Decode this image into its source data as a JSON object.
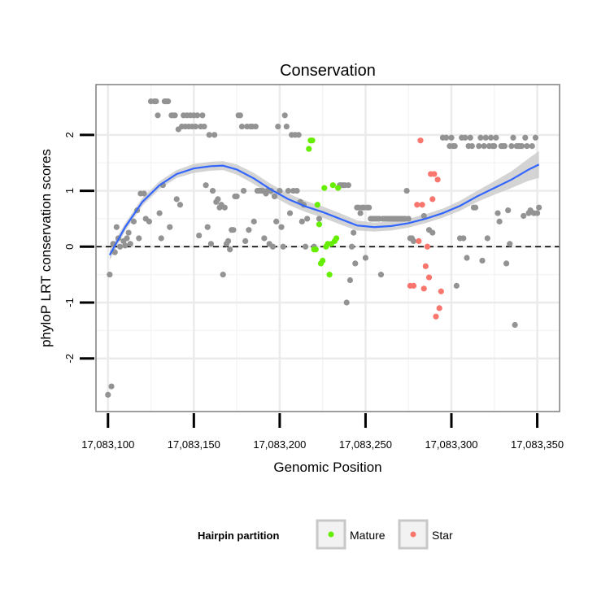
{
  "chart_data": {
    "type": "scatter",
    "title": "Conservation",
    "xlabel": "Genomic Position",
    "ylabel": "phyloP LRT conservation scores",
    "xlim": [
      17083093,
      17083363
    ],
    "ylim": [
      -2.95,
      2.9
    ],
    "x_ticks": [
      {
        "value": 17083100,
        "label": "17,083,100"
      },
      {
        "value": 17083150,
        "label": "17,083,150"
      },
      {
        "value": 17083200,
        "label": "17,083,200"
      },
      {
        "value": 17083250,
        "label": "17,083,250"
      },
      {
        "value": 17083300,
        "label": "17,083,300"
      },
      {
        "value": 17083350,
        "label": "17,083,350"
      }
    ],
    "y_ticks": [
      {
        "value": -2,
        "label": "-2"
      },
      {
        "value": -1,
        "label": "-1"
      },
      {
        "value": 0,
        "label": "0"
      },
      {
        "value": 1,
        "label": "1"
      },
      {
        "value": 2,
        "label": "2"
      }
    ],
    "reference_line": {
      "y": 0,
      "style": "dashed",
      "color": "#000000"
    },
    "legend": {
      "title": "Hairpin partition",
      "position": "bottom",
      "entries": [
        {
          "label": "Mature",
          "color": "#66ee00"
        },
        {
          "label": "Star",
          "color": "#f8766d"
        }
      ]
    },
    "colors": {
      "other": "#939393",
      "mature": "#66ee00",
      "star": "#f8766d",
      "smooth": "#3366ff",
      "band": "#cccccc"
    },
    "smooth": [
      [
        17083101,
        -0.15
      ],
      [
        17083110,
        0.35
      ],
      [
        17083120,
        0.8
      ],
      [
        17083130,
        1.1
      ],
      [
        17083140,
        1.3
      ],
      [
        17083150,
        1.4
      ],
      [
        17083160,
        1.44
      ],
      [
        17083167,
        1.45
      ],
      [
        17083175,
        1.38
      ],
      [
        17083185,
        1.22
      ],
      [
        17083195,
        1.02
      ],
      [
        17083205,
        0.85
      ],
      [
        17083215,
        0.72
      ],
      [
        17083225,
        0.62
      ],
      [
        17083235,
        0.5
      ],
      [
        17083245,
        0.38
      ],
      [
        17083255,
        0.35
      ],
      [
        17083265,
        0.37
      ],
      [
        17083275,
        0.42
      ],
      [
        17083285,
        0.5
      ],
      [
        17083295,
        0.6
      ],
      [
        17083305,
        0.73
      ],
      [
        17083315,
        0.9
      ],
      [
        17083325,
        1.05
      ],
      [
        17083335,
        1.2
      ],
      [
        17083345,
        1.38
      ],
      [
        17083351,
        1.47
      ]
    ],
    "smooth_band": [
      0.09,
      0.07,
      0.07,
      0.07,
      0.07,
      0.08,
      0.08,
      0.08,
      0.09,
      0.1,
      0.1,
      0.1,
      0.1,
      0.1,
      0.1,
      0.09,
      0.08,
      0.08,
      0.08,
      0.08,
      0.08,
      0.09,
      0.1,
      0.12,
      0.15,
      0.2,
      0.24
    ],
    "series": [
      {
        "name": "Other",
        "points": [
          [
            17083100,
            -2.65
          ],
          [
            17083102,
            -2.5
          ],
          [
            17083101,
            -0.5
          ],
          [
            17083103,
            0.05
          ],
          [
            17083104,
            -0.1
          ],
          [
            17083105,
            0.35
          ],
          [
            17083106,
            0.15
          ],
          [
            17083107,
            0.0
          ],
          [
            17083109,
            0.1
          ],
          [
            17083110,
            0.02
          ],
          [
            17083111,
            0.15
          ],
          [
            17083112,
            0.25
          ],
          [
            17083113,
            0.05
          ],
          [
            17083115,
            0.45
          ],
          [
            17083117,
            0.65
          ],
          [
            17083118,
            0.15
          ],
          [
            17083119,
            0.95
          ],
          [
            17083121,
            0.95
          ],
          [
            17083122,
            0.5
          ],
          [
            17083124,
            0.45
          ],
          [
            17083125,
            2.6
          ],
          [
            17083127,
            2.6
          ],
          [
            17083128,
            2.6
          ],
          [
            17083129,
            2.35
          ],
          [
            17083130,
            0.6
          ],
          [
            17083131,
            0.15
          ],
          [
            17083132,
            1.1
          ],
          [
            17083133,
            2.6
          ],
          [
            17083134,
            2.6
          ],
          [
            17083135,
            2.6
          ],
          [
            17083136,
            0.35
          ],
          [
            17083137,
            2.35
          ],
          [
            17083138,
            2.35
          ],
          [
            17083139,
            2.35
          ],
          [
            17083140,
            0.85
          ],
          [
            17083141,
            2.1
          ],
          [
            17083142,
            0.75
          ],
          [
            17083143,
            2.15
          ],
          [
            17083144,
            2.35
          ],
          [
            17083145,
            2.15
          ],
          [
            17083146,
            2.35
          ],
          [
            17083147,
            2.15
          ],
          [
            17083148,
            2.35
          ],
          [
            17083149,
            2.15
          ],
          [
            17083150,
            2.35
          ],
          [
            17083151,
            2.15
          ],
          [
            17083152,
            2.35
          ],
          [
            17083153,
            0.2
          ],
          [
            17083154,
            2.15
          ],
          [
            17083155,
            2.35
          ],
          [
            17083156,
            2.15
          ],
          [
            17083157,
            1.1
          ],
          [
            17083158,
            0.35
          ],
          [
            17083159,
            2.0
          ],
          [
            17083160,
            0.05
          ],
          [
            17083161,
            1.0
          ],
          [
            17083162,
            2.0
          ],
          [
            17083163,
            0.8
          ],
          [
            17083164,
            0.85
          ],
          [
            17083165,
            0.7
          ],
          [
            17083166,
            0.75
          ],
          [
            17083167,
            -0.5
          ],
          [
            17083168,
            0.7
          ],
          [
            17083169,
            0.05
          ],
          [
            17083170,
            0.1
          ],
          [
            17083171,
            -0.05
          ],
          [
            17083172,
            0.3
          ],
          [
            17083173,
            0.3
          ],
          [
            17083174,
            0.9
          ],
          [
            17083175,
            0.9
          ],
          [
            17083176,
            2.35
          ],
          [
            17083177,
            2.35
          ],
          [
            17083178,
            2.15
          ],
          [
            17083179,
            1.0
          ],
          [
            17083180,
            0.1
          ],
          [
            17083181,
            2.15
          ],
          [
            17083182,
            0.3
          ],
          [
            17083183,
            2.15
          ],
          [
            17083184,
            2.15
          ],
          [
            17083185,
            0.45
          ],
          [
            17083186,
            2.15
          ],
          [
            17083187,
            1.0
          ],
          [
            17083188,
            1.0
          ],
          [
            17083189,
            1.0
          ],
          [
            17083190,
            1.0
          ],
          [
            17083191,
            0.15
          ],
          [
            17083192,
            0.95
          ],
          [
            17083193,
            1.0
          ],
          [
            17083194,
            0.05
          ],
          [
            17083195,
            1.0
          ],
          [
            17083196,
            0.0
          ],
          [
            17083197,
            0.9
          ],
          [
            17083198,
            0.45
          ],
          [
            17083199,
            2.15
          ],
          [
            17083200,
            1.0
          ],
          [
            17083201,
            0.35
          ],
          [
            17083202,
            0.0
          ],
          [
            17083203,
            2.35
          ],
          [
            17083204,
            2.15
          ],
          [
            17083205,
            1.0
          ],
          [
            17083206,
            0.6
          ],
          [
            17083207,
            2.0
          ],
          [
            17083208,
            1.0
          ],
          [
            17083209,
            2.0
          ],
          [
            17083210,
            1.0
          ],
          [
            17083211,
            2.0
          ],
          [
            17083212,
            0.8
          ],
          [
            17083213,
            0.45
          ],
          [
            17083214,
            0.75
          ],
          [
            17083215,
            0.0
          ],
          [
            17083216,
            0.5
          ],
          [
            17083220,
            0.0
          ],
          [
            17083223,
            0.5
          ],
          [
            17083235,
            1.1
          ],
          [
            17083236,
            1.1
          ],
          [
            17083237,
            1.1
          ],
          [
            17083238,
            1.1
          ],
          [
            17083239,
            -1.0
          ],
          [
            17083240,
            1.1
          ],
          [
            17083241,
            -0.6
          ],
          [
            17083242,
            0.0
          ],
          [
            17083243,
            0.25
          ],
          [
            17083244,
            -0.3
          ],
          [
            17083245,
            0.7
          ],
          [
            17083246,
            0.7
          ],
          [
            17083247,
            0.6
          ],
          [
            17083248,
            0.7
          ],
          [
            17083249,
            0.7
          ],
          [
            17083250,
            -0.2
          ],
          [
            17083251,
            0.7
          ],
          [
            17083252,
            0.7
          ],
          [
            17083253,
            0.5
          ],
          [
            17083254,
            0.5
          ],
          [
            17083255,
            0.5
          ],
          [
            17083256,
            0.5
          ],
          [
            17083257,
            0.5
          ],
          [
            17083258,
            0.5
          ],
          [
            17083259,
            -0.5
          ],
          [
            17083260,
            0.5
          ],
          [
            17083261,
            0.5
          ],
          [
            17083262,
            0.5
          ],
          [
            17083263,
            0.5
          ],
          [
            17083264,
            0.5
          ],
          [
            17083265,
            0.5
          ],
          [
            17083266,
            0.5
          ],
          [
            17083267,
            0.5
          ],
          [
            17083268,
            0.5
          ],
          [
            17083269,
            0.5
          ],
          [
            17083270,
            0.5
          ],
          [
            17083271,
            0.5
          ],
          [
            17083272,
            0.5
          ],
          [
            17083273,
            0.5
          ],
          [
            17083274,
            1.0
          ],
          [
            17083275,
            0.5
          ],
          [
            17083276,
            0.15
          ],
          [
            17083277,
            0.15
          ],
          [
            17083278,
            0.1
          ],
          [
            17083284,
            0.55
          ],
          [
            17083287,
            0.3
          ],
          [
            17083289,
            0.25
          ],
          [
            17083295,
            1.95
          ],
          [
            17083297,
            1.95
          ],
          [
            17083299,
            1.8
          ],
          [
            17083300,
            1.95
          ],
          [
            17083301,
            1.8
          ],
          [
            17083302,
            1.8
          ],
          [
            17083303,
            -0.7
          ],
          [
            17083305,
            0.15
          ],
          [
            17083306,
            1.95
          ],
          [
            17083307,
            0.15
          ],
          [
            17083308,
            1.95
          ],
          [
            17083309,
            -0.2
          ],
          [
            17083310,
            1.8
          ],
          [
            17083311,
            1.95
          ],
          [
            17083312,
            1.8
          ],
          [
            17083313,
            0.7
          ],
          [
            17083314,
            0.7
          ],
          [
            17083316,
            1.8
          ],
          [
            17083317,
            1.95
          ],
          [
            17083318,
            -0.25
          ],
          [
            17083319,
            1.8
          ],
          [
            17083320,
            1.95
          ],
          [
            17083321,
            0.15
          ],
          [
            17083322,
            1.8
          ],
          [
            17083323,
            1.95
          ],
          [
            17083324,
            1.8
          ],
          [
            17083325,
            1.8
          ],
          [
            17083326,
            1.95
          ],
          [
            17083327,
            0.6
          ],
          [
            17083328,
            0.45
          ],
          [
            17083329,
            1.8
          ],
          [
            17083330,
            1.8
          ],
          [
            17083331,
            1.8
          ],
          [
            17083332,
            -0.3
          ],
          [
            17083333,
            0.65
          ],
          [
            17083334,
            0.05
          ],
          [
            17083335,
            1.8
          ],
          [
            17083336,
            1.95
          ],
          [
            17083337,
            -1.4
          ],
          [
            17083338,
            1.8
          ],
          [
            17083339,
            1.8
          ],
          [
            17083340,
            1.8
          ],
          [
            17083341,
            1.8
          ],
          [
            17083342,
            0.55
          ],
          [
            17083343,
            1.95
          ],
          [
            17083344,
            1.8
          ],
          [
            17083345,
            0.6
          ],
          [
            17083346,
            0.65
          ],
          [
            17083347,
            1.8
          ],
          [
            17083348,
            0.6
          ],
          [
            17083349,
            1.95
          ],
          [
            17083350,
            0.6
          ],
          [
            17083351,
            0.7
          ]
        ]
      },
      {
        "name": "Mature",
        "points": [
          [
            17083217,
            1.75
          ],
          [
            17083218,
            1.9
          ],
          [
            17083219,
            1.9
          ],
          [
            17083220,
            -0.05
          ],
          [
            17083221,
            -0.05
          ],
          [
            17083222,
            0.75
          ],
          [
            17083223,
            0.4
          ],
          [
            17083224,
            -0.3
          ],
          [
            17083225,
            -0.25
          ],
          [
            17083226,
            1.05
          ],
          [
            17083227,
            0.0
          ],
          [
            17083228,
            0.05
          ],
          [
            17083229,
            -0.5
          ],
          [
            17083230,
            0.05
          ],
          [
            17083231,
            1.1
          ],
          [
            17083232,
            0.1
          ],
          [
            17083233,
            0.15
          ],
          [
            17083234,
            1.05
          ]
        ]
      },
      {
        "name": "Star",
        "points": [
          [
            17083276,
            -0.7
          ],
          [
            17083278,
            -0.7
          ],
          [
            17083280,
            0.75
          ],
          [
            17083281,
            0.1
          ],
          [
            17083282,
            1.9
          ],
          [
            17083283,
            0.75
          ],
          [
            17083284,
            -0.75
          ],
          [
            17083285,
            -0.35
          ],
          [
            17083286,
            0.0
          ],
          [
            17083287,
            -0.55
          ],
          [
            17083288,
            1.3
          ],
          [
            17083289,
            0.85
          ],
          [
            17083290,
            1.3
          ],
          [
            17083291,
            -1.25
          ],
          [
            17083292,
            1.2
          ],
          [
            17083293,
            -1.1
          ],
          [
            17083294,
            -0.8
          ]
        ]
      }
    ]
  }
}
